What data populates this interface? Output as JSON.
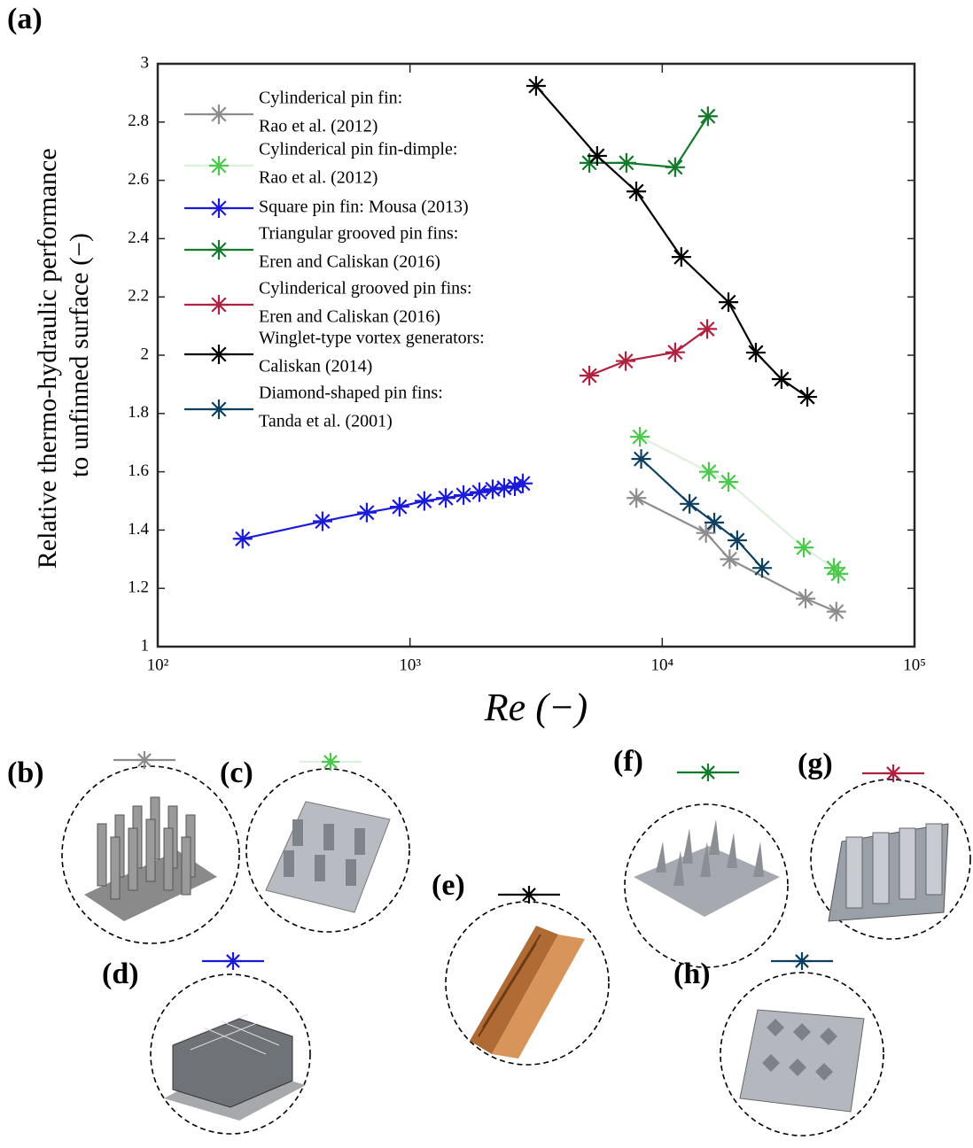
{
  "panel_label": "(a)",
  "chart_data": {
    "type": "line",
    "ylabel": [
      "Relative thermo-hydraulic performance",
      "to unfinned surface (−)"
    ],
    "xlabel": "Re (−)",
    "xscale": "log",
    "xlim": [
      100,
      100000
    ],
    "xticks": [
      {
        "value": 100,
        "label": "10²"
      },
      {
        "value": 1000,
        "label": "10³"
      },
      {
        "value": 10000,
        "label": "10⁴"
      },
      {
        "value": 100000,
        "label": "10⁵"
      }
    ],
    "ylim": [
      1,
      3
    ],
    "yticks": [
      1,
      1.2,
      1.4,
      1.6,
      1.8,
      2,
      2.2,
      2.4,
      2.6,
      2.8,
      3
    ],
    "legend": "upper left",
    "series": [
      {
        "name": [
          "Cylinderical pin fin:",
          "Rao et al. (2012)"
        ],
        "color": "#8c8c8c",
        "line_color": "#8c8c8c",
        "x": [
          7900,
          14900,
          18500,
          37000,
          49000
        ],
        "values": [
          1.51,
          1.39,
          1.3,
          1.165,
          1.12
        ]
      },
      {
        "name": [
          "Cylinderical pin fin-dimple:",
          "Rao et al. (2012)"
        ],
        "color": "#4cc84c",
        "line_color": "#dcf0dc",
        "x": [
          8150,
          15300,
          18300,
          36400,
          47900,
          49900
        ],
        "values": [
          1.72,
          1.6,
          1.565,
          1.34,
          1.27,
          1.25
        ]
      },
      {
        "name": [
          "Square pin fin: Mousa (2013)"
        ],
        "color": "#1a1ad8",
        "line_color": "#1a1ad8",
        "x": [
          217,
          450,
          674,
          909,
          1140,
          1386,
          1630,
          1885,
          2127,
          2362,
          2604,
          2800
        ],
        "values": [
          1.37,
          1.43,
          1.46,
          1.48,
          1.5,
          1.51,
          1.52,
          1.53,
          1.54,
          1.545,
          1.55,
          1.56
        ]
      },
      {
        "name": [
          "Triangular grooved pin fins:",
          "Eren and Caliskan (2016)"
        ],
        "color": "#137a2b",
        "line_color": "#137a2b",
        "x": [
          5140,
          7210,
          11250,
          15170
        ],
        "values": [
          2.66,
          2.66,
          2.645,
          2.82
        ]
      },
      {
        "name": [
          "Cylinderical grooved pin fins:",
          "Eren and Caliskan (2016)"
        ],
        "color": "#b0203f",
        "line_color": "#b0203f",
        "x": [
          5140,
          7160,
          11250,
          15070
        ],
        "values": [
          1.93,
          1.98,
          2.01,
          2.09
        ]
      },
      {
        "name": [
          "Winglet-type vortex generators:",
          "Caliskan (2014)"
        ],
        "color": "#000000",
        "line_color": "#000000",
        "x": [
          3160,
          5520,
          7890,
          11900,
          18300,
          23500,
          29700,
          37600
        ],
        "values": [
          2.924,
          2.684,
          2.562,
          2.337,
          2.182,
          2.009,
          1.918,
          1.857
        ]
      },
      {
        "name": [
          "Diamond-shaped pin fins:",
          "Tanda et al. (2001)"
        ],
        "color": "#0d4060",
        "line_color": "#0d4060",
        "x": [
          8250,
          12830,
          16080,
          19820,
          24880
        ],
        "values": [
          1.644,
          1.49,
          1.426,
          1.365,
          1.27
        ]
      }
    ]
  },
  "panels": [
    "(b)",
    "(c)",
    "(d)",
    "(e)",
    "(f)",
    "(g)",
    "(h)"
  ]
}
